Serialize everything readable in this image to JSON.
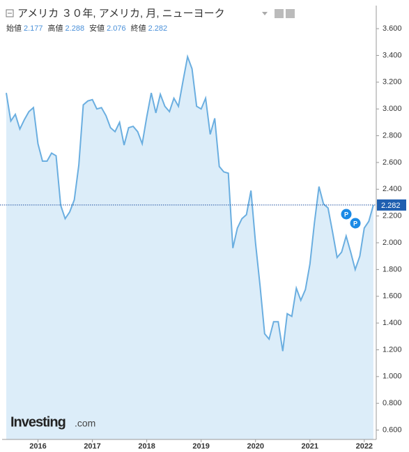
{
  "chart_data": {
    "type": "line",
    "title": "アメリカ ３０年, アメリカ, 月, ニューヨーク",
    "ohlc": [
      {
        "label": "始値",
        "value": 2.177
      },
      {
        "label": "高値",
        "value": 2.288
      },
      {
        "label": "安値",
        "value": 2.076
      },
      {
        "label": "終値",
        "value": 2.282
      }
    ],
    "watermark": {
      "brand": "Investing",
      "suffix": ".com"
    },
    "color": "#6aaee0",
    "fill": "#dcedf9",
    "x": [
      2015.417,
      2015.5,
      2015.583,
      2015.667,
      2015.75,
      2015.833,
      2015.917,
      2016,
      2016.083,
      2016.167,
      2016.25,
      2016.333,
      2016.417,
      2016.5,
      2016.583,
      2016.667,
      2016.75,
      2016.833,
      2016.917,
      2017,
      2017.083,
      2017.167,
      2017.25,
      2017.333,
      2017.417,
      2017.5,
      2017.583,
      2017.667,
      2017.75,
      2017.833,
      2017.917,
      2018,
      2018.083,
      2018.167,
      2018.25,
      2018.333,
      2018.417,
      2018.5,
      2018.583,
      2018.667,
      2018.75,
      2018.833,
      2018.917,
      2019,
      2019.083,
      2019.167,
      2019.25,
      2019.333,
      2019.417,
      2019.5,
      2019.583,
      2019.667,
      2019.75,
      2019.833,
      2019.917,
      2020,
      2020.083,
      2020.167,
      2020.25,
      2020.333,
      2020.417,
      2020.5,
      2020.583,
      2020.667,
      2020.75,
      2020.833,
      2020.917,
      2021,
      2021.083,
      2021.167,
      2021.25,
      2021.333,
      2021.417,
      2021.5,
      2021.583,
      2021.667,
      2021.75,
      2021.833,
      2021.917,
      2022,
      2022.083,
      2022.167
    ],
    "values": [
      3.12,
      2.91,
      2.96,
      2.85,
      2.92,
      2.98,
      3.01,
      2.74,
      2.61,
      2.61,
      2.67,
      2.65,
      2.28,
      2.18,
      2.23,
      2.32,
      2.58,
      3.03,
      3.06,
      3.07,
      3.0,
      3.01,
      2.95,
      2.86,
      2.83,
      2.9,
      2.73,
      2.86,
      2.87,
      2.83,
      2.74,
      2.94,
      3.12,
      2.97,
      3.11,
      3.02,
      2.98,
      3.08,
      3.02,
      3.21,
      3.39,
      3.3,
      3.02,
      3.0,
      3.08,
      2.81,
      2.93,
      2.57,
      2.53,
      2.52,
      1.96,
      2.11,
      2.18,
      2.21,
      2.39,
      2.0,
      1.68,
      1.32,
      1.28,
      1.41,
      1.41,
      1.19,
      1.47,
      1.45,
      1.66,
      1.57,
      1.65,
      1.84,
      2.15,
      2.42,
      2.29,
      2.26,
      2.08,
      1.89,
      1.93,
      2.05,
      1.93,
      1.8,
      1.9,
      2.11,
      2.16,
      2.282
    ],
    "xlim": [
      2015.34,
      2022.22
    ],
    "xticks": [
      2016,
      2017,
      2018,
      2019,
      2020,
      2021,
      2022
    ],
    "ylim": [
      0.53,
      3.71
    ],
    "yticks": [
      {
        "value": 0.6,
        "label": "0.600"
      },
      {
        "value": 0.8,
        "label": "0.800"
      },
      {
        "value": 1.0,
        "label": "1.000"
      },
      {
        "value": 1.2,
        "label": "1.200"
      },
      {
        "value": 1.4,
        "label": "1.400"
      },
      {
        "value": 1.6,
        "label": "1.600"
      },
      {
        "value": 1.8,
        "label": "1.800"
      },
      {
        "value": 2.0,
        "label": "2.000"
      },
      {
        "value": 2.2,
        "label": "2.200"
      },
      {
        "value": 2.4,
        "label": "2.400"
      },
      {
        "value": 2.6,
        "label": "2.600"
      },
      {
        "value": 2.8,
        "label": "2.800"
      },
      {
        "value": 3.0,
        "label": "3.000"
      },
      {
        "value": 3.2,
        "label": "3.200"
      },
      {
        "value": 3.4,
        "label": "3.400"
      },
      {
        "value": 3.6,
        "label": "3.600"
      }
    ]
  }
}
